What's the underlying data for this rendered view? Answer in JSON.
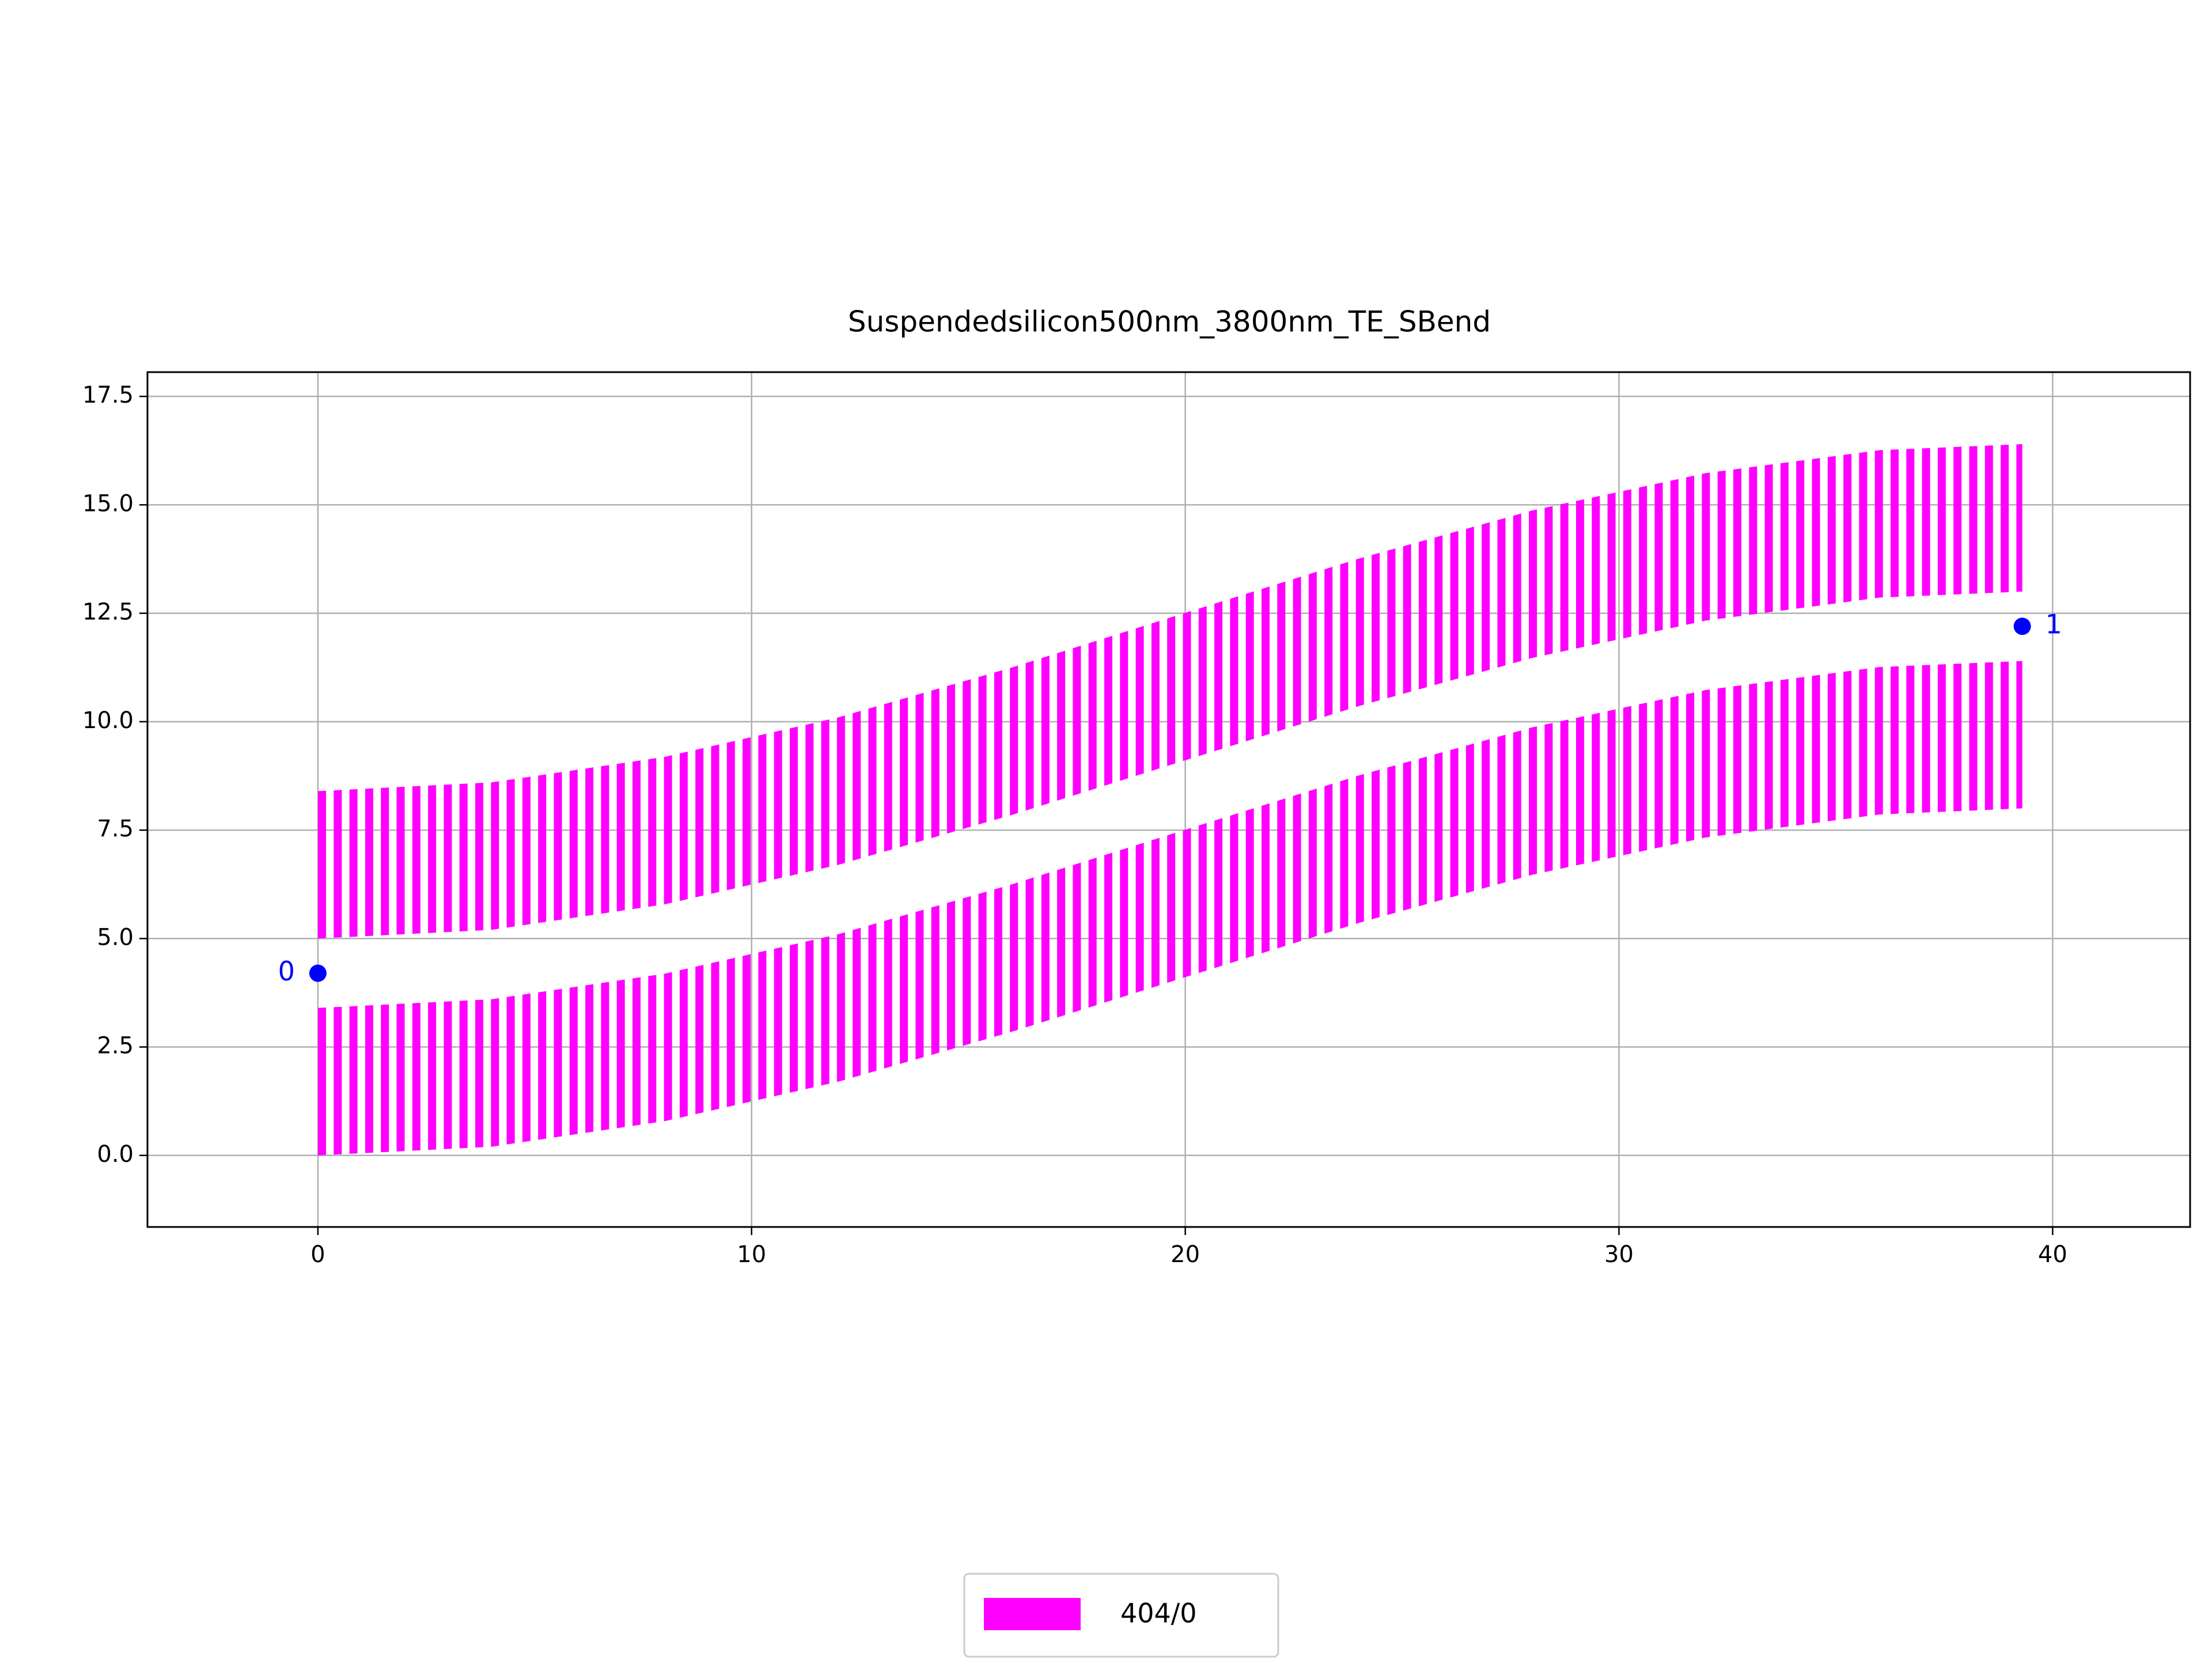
{
  "chart_data": {
    "type": "band",
    "title": "Suspendedsilicon500nm_3800nm_TE_SBend",
    "x": [
      0,
      4,
      8,
      12,
      16,
      20,
      24,
      28,
      32,
      36,
      39.3
    ],
    "series": [
      {
        "name": "404/0",
        "color": "#ff00ff",
        "bands": [
          {
            "lower": [
              0,
              0.2,
              0.79,
              1.7,
              2.85,
              4.11,
              5.36,
              6.47,
              7.33,
              7.86,
              8.0
            ],
            "upper": [
              3.4,
              3.6,
              4.19,
              5.1,
              6.25,
              7.51,
              8.76,
              9.87,
              10.73,
              11.26,
              11.4
            ]
          },
          {
            "lower": [
              5.0,
              5.2,
              5.79,
              6.7,
              7.85,
              9.11,
              10.36,
              11.47,
              12.33,
              12.86,
              13.0
            ],
            "upper": [
              8.4,
              8.6,
              9.19,
              10.1,
              11.25,
              12.51,
              13.76,
              14.87,
              15.73,
              16.26,
              16.4
            ]
          }
        ]
      }
    ],
    "ports": {
      "color": "#0000ff",
      "labels": [
        "0",
        "1"
      ],
      "x": [
        0,
        39.3
      ],
      "y": [
        4.2,
        12.2
      ]
    },
    "xlim": [
      -3.93,
      43.17
    ],
    "ylim": [
      -1.65,
      18.06
    ],
    "xticks": [
      0,
      10,
      20,
      30,
      40
    ],
    "yticks": [
      {
        "value": 0,
        "label": "0.0"
      },
      2.5,
      {
        "value": 5,
        "label": "5.0"
      },
      7.5,
      {
        "value": 10,
        "label": "10.0"
      },
      12.5,
      {
        "value": 15,
        "label": "15.0"
      },
      17.5
    ],
    "grid": true,
    "legend": "bottom"
  }
}
